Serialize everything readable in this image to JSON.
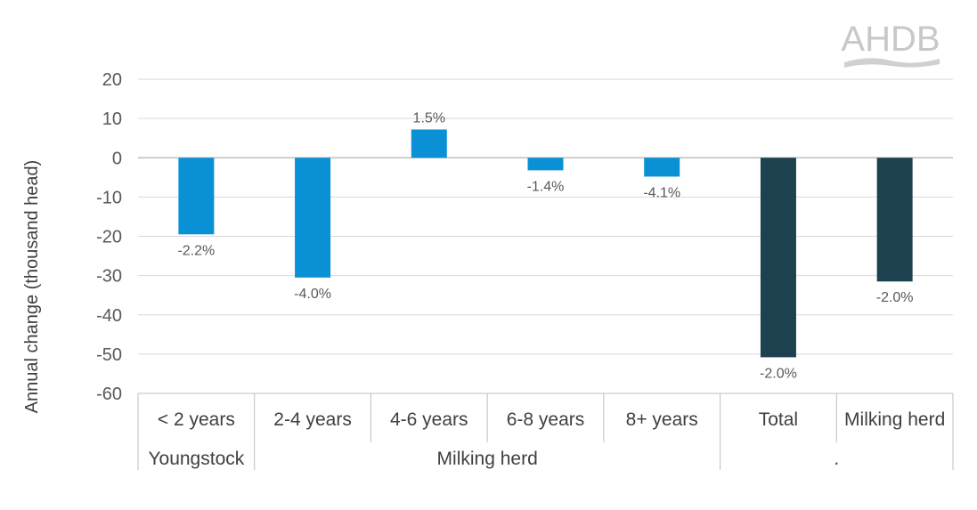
{
  "logo": {
    "text": "AHDB"
  },
  "chart_data": {
    "type": "bar",
    "ylabel": "Annual change (thousand head)",
    "ylim": [
      -60,
      20
    ],
    "yticks": [
      20,
      10,
      0,
      -10,
      -20,
      -30,
      -40,
      -50,
      -60
    ],
    "grid": true,
    "categories": [
      "< 2 years",
      "2-4 years",
      "4-6 years",
      "6-8 years",
      "8+ years",
      "Total",
      "Milking herd"
    ],
    "groups": [
      {
        "label": "Youngstock",
        "span": 1
      },
      {
        "label": "Milking herd",
        "span": 4
      },
      {
        "label": ".",
        "span": 2
      }
    ],
    "values": [
      -19.5,
      -30.5,
      7.2,
      -3.2,
      -4.8,
      -50.8,
      -31.5
    ],
    "data_labels": [
      "-2.2%",
      "-4.0%",
      "1.5%",
      "-1.4%",
      "-4.1%",
      "-2.0%",
      "-2.0%"
    ],
    "colors": [
      "#0a90d4",
      "#0a90d4",
      "#0a90d4",
      "#0a90d4",
      "#0a90d4",
      "#1e4150",
      "#1e4150"
    ]
  }
}
